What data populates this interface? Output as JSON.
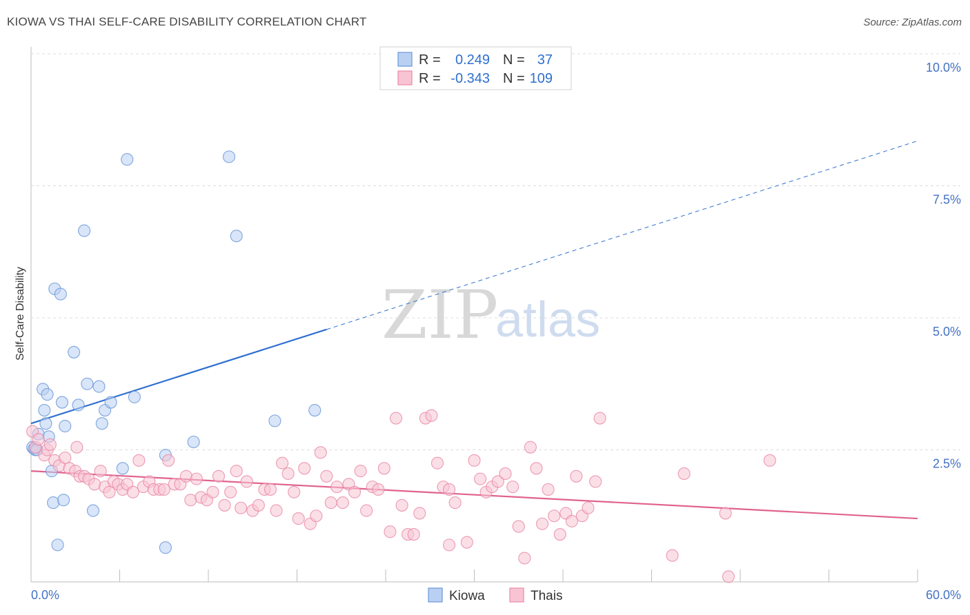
{
  "header": {
    "title": "KIOWA VS THAI SELF-CARE DISABILITY CORRELATION CHART",
    "source": "Source: ZipAtlas.com"
  },
  "watermark": {
    "zip": "ZIP",
    "atlas": "atlas"
  },
  "legend": {
    "r_label": "R =",
    "n_label": "N =",
    "rows": [
      {
        "series": "Kiowa",
        "r": "0.249",
        "n": "37",
        "fill": "#b9d0f3",
        "stroke": "#6a97d8"
      },
      {
        "series": "Thais",
        "r": "-0.343",
        "n": "109",
        "fill": "#f8c4d3",
        "stroke": "#e98aa8"
      }
    ]
  },
  "chart_data": {
    "type": "scatter",
    "title": "KIOWA VS THAI SELF-CARE DISABILITY CORRELATION CHART",
    "xlabel": "",
    "ylabel": "Self-Care Disability",
    "xlim": [
      0,
      60
    ],
    "ylim": [
      0,
      10
    ],
    "x_tick_labels": [
      "0.0%",
      "60.0%"
    ],
    "y_ticks": [
      2.5,
      5.0,
      7.5,
      10.0
    ],
    "y_tick_labels": [
      "2.5%",
      "5.0%",
      "7.5%",
      "10.0%"
    ],
    "grid": "horizontal dashed",
    "legend_position": "top-center",
    "series": [
      {
        "name": "Kiowa",
        "color": "#6a97d8",
        "fill": "#b9d0f3",
        "trend": {
          "x0": 0,
          "y0": 3.0,
          "x1": 20,
          "y1": 4.78,
          "dash_to_x": 60,
          "dash_to_y": 8.35,
          "color": "#2e6fcf"
        },
        "points": [
          [
            0.1,
            2.55
          ],
          [
            0.2,
            2.52
          ],
          [
            0.3,
            2.5
          ],
          [
            0.4,
            2.5
          ],
          [
            0.5,
            2.8
          ],
          [
            0.8,
            3.65
          ],
          [
            0.9,
            3.25
          ],
          [
            1.0,
            3.0
          ],
          [
            1.1,
            3.55
          ],
          [
            1.2,
            2.75
          ],
          [
            1.4,
            2.1
          ],
          [
            1.5,
            1.5
          ],
          [
            1.6,
            5.55
          ],
          [
            1.8,
            0.7
          ],
          [
            2.0,
            5.45
          ],
          [
            2.1,
            3.4
          ],
          [
            2.2,
            1.55
          ],
          [
            2.3,
            2.95
          ],
          [
            2.9,
            4.35
          ],
          [
            3.2,
            3.35
          ],
          [
            3.6,
            6.65
          ],
          [
            3.8,
            3.75
          ],
          [
            4.2,
            1.35
          ],
          [
            4.6,
            3.7
          ],
          [
            4.8,
            3.0
          ],
          [
            5.0,
            3.25
          ],
          [
            5.4,
            3.4
          ],
          [
            6.2,
            2.15
          ],
          [
            6.5,
            8.0
          ],
          [
            7.0,
            3.5
          ],
          [
            9.1,
            2.4
          ],
          [
            9.1,
            0.65
          ],
          [
            11.0,
            2.65
          ],
          [
            13.4,
            8.05
          ],
          [
            13.9,
            6.55
          ],
          [
            16.5,
            3.05
          ],
          [
            19.2,
            3.25
          ]
        ]
      },
      {
        "name": "Thais",
        "color": "#e98aa8",
        "fill": "#f8c4d3",
        "trend": {
          "x0": 0,
          "y0": 2.1,
          "x1": 60,
          "y1": 1.2,
          "color": "#e0638e"
        },
        "points": [
          [
            0.1,
            2.85
          ],
          [
            0.3,
            2.55
          ],
          [
            0.5,
            2.7
          ],
          [
            0.9,
            2.4
          ],
          [
            1.1,
            2.5
          ],
          [
            1.3,
            2.6
          ],
          [
            1.6,
            2.3
          ],
          [
            1.9,
            2.2
          ],
          [
            2.3,
            2.35
          ],
          [
            2.6,
            2.15
          ],
          [
            3.0,
            2.1
          ],
          [
            3.1,
            2.55
          ],
          [
            3.3,
            2.0
          ],
          [
            3.6,
            2.0
          ],
          [
            3.9,
            1.95
          ],
          [
            4.3,
            1.85
          ],
          [
            4.7,
            2.1
          ],
          [
            5.0,
            1.8
          ],
          [
            5.3,
            1.7
          ],
          [
            5.6,
            1.9
          ],
          [
            5.9,
            1.85
          ],
          [
            6.2,
            1.75
          ],
          [
            6.5,
            1.85
          ],
          [
            6.9,
            1.7
          ],
          [
            7.3,
            2.3
          ],
          [
            7.6,
            1.8
          ],
          [
            8.0,
            1.9
          ],
          [
            8.3,
            1.75
          ],
          [
            8.7,
            1.75
          ],
          [
            9.0,
            1.75
          ],
          [
            9.3,
            2.3
          ],
          [
            9.7,
            1.85
          ],
          [
            10.1,
            1.85
          ],
          [
            10.5,
            2.0
          ],
          [
            10.8,
            1.55
          ],
          [
            11.2,
            1.95
          ],
          [
            11.5,
            1.6
          ],
          [
            11.9,
            1.55
          ],
          [
            12.3,
            1.7
          ],
          [
            12.7,
            2.0
          ],
          [
            13.1,
            1.45
          ],
          [
            13.5,
            1.7
          ],
          [
            13.9,
            2.1
          ],
          [
            14.2,
            1.4
          ],
          [
            14.6,
            1.9
          ],
          [
            15.0,
            1.35
          ],
          [
            15.4,
            1.45
          ],
          [
            15.8,
            1.75
          ],
          [
            16.2,
            1.75
          ],
          [
            16.6,
            1.35
          ],
          [
            17.0,
            2.25
          ],
          [
            17.4,
            2.05
          ],
          [
            17.8,
            1.7
          ],
          [
            18.1,
            1.2
          ],
          [
            18.5,
            2.15
          ],
          [
            18.9,
            1.1
          ],
          [
            19.3,
            1.25
          ],
          [
            19.6,
            2.45
          ],
          [
            20.0,
            2.0
          ],
          [
            20.3,
            1.5
          ],
          [
            20.7,
            1.8
          ],
          [
            21.1,
            1.5
          ],
          [
            21.5,
            1.85
          ],
          [
            21.9,
            1.7
          ],
          [
            22.3,
            2.1
          ],
          [
            22.7,
            1.35
          ],
          [
            23.1,
            1.8
          ],
          [
            23.5,
            1.75
          ],
          [
            23.9,
            2.15
          ],
          [
            24.3,
            0.95
          ],
          [
            24.7,
            3.1
          ],
          [
            25.1,
            1.45
          ],
          [
            25.5,
            0.9
          ],
          [
            25.9,
            0.9
          ],
          [
            26.3,
            1.3
          ],
          [
            26.7,
            3.1
          ],
          [
            27.1,
            3.15
          ],
          [
            27.5,
            2.25
          ],
          [
            27.9,
            1.8
          ],
          [
            28.3,
            1.75
          ],
          [
            28.7,
            1.5
          ],
          [
            28.3,
            0.7
          ],
          [
            29.5,
            0.75
          ],
          [
            30.0,
            2.3
          ],
          [
            30.4,
            1.95
          ],
          [
            30.8,
            1.7
          ],
          [
            31.2,
            1.8
          ],
          [
            31.6,
            1.9
          ],
          [
            32.1,
            2.05
          ],
          [
            32.6,
            1.8
          ],
          [
            33.0,
            1.05
          ],
          [
            33.4,
            0.45
          ],
          [
            33.8,
            2.55
          ],
          [
            34.2,
            2.15
          ],
          [
            34.6,
            1.1
          ],
          [
            35.0,
            1.75
          ],
          [
            35.4,
            1.25
          ],
          [
            35.8,
            0.9
          ],
          [
            36.2,
            1.3
          ],
          [
            36.6,
            1.15
          ],
          [
            36.9,
            2.0
          ],
          [
            37.3,
            1.25
          ],
          [
            37.7,
            1.4
          ],
          [
            38.2,
            1.9
          ],
          [
            38.5,
            3.1
          ],
          [
            43.4,
            0.5
          ],
          [
            44.2,
            2.05
          ],
          [
            47.0,
            1.3
          ],
          [
            47.2,
            0.1
          ],
          [
            50.0,
            2.3
          ]
        ]
      }
    ]
  },
  "bottom_legend": [
    {
      "label": "Kiowa",
      "fill": "#b9d0f3",
      "stroke": "#6a97d8"
    },
    {
      "label": "Thais",
      "fill": "#f8c4d3",
      "stroke": "#e98aa8"
    }
  ]
}
